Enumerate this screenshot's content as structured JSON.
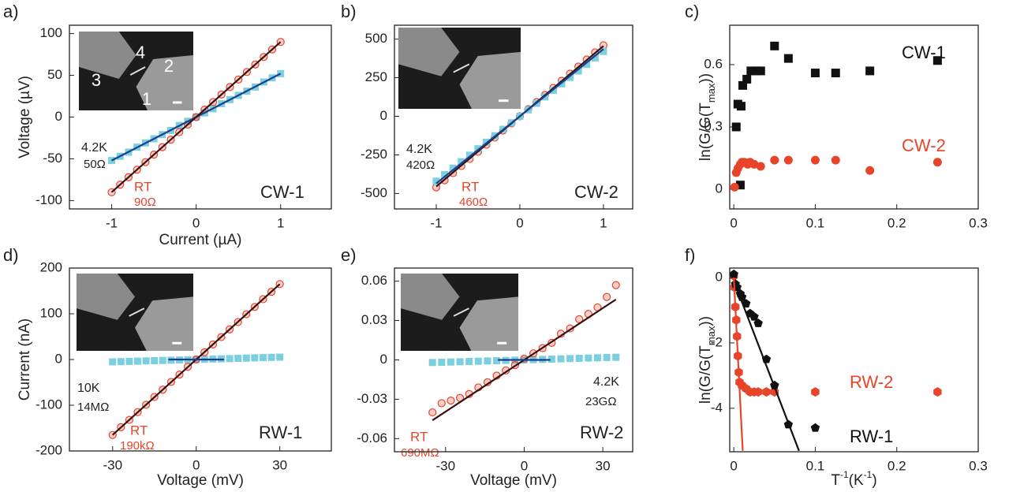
{
  "chart_data": [
    {
      "type": "scatter",
      "panel": "a)",
      "xlabel": "Current (µA)",
      "ylabel": "Voltage (µV)",
      "xlim": [
        -1.5,
        1.6
      ],
      "ylim": [
        -110,
        110
      ],
      "xticks": [
        -1,
        0,
        1
      ],
      "yticks": [
        -100,
        -50,
        0,
        50,
        100
      ],
      "inset": {
        "labels": [
          "4",
          "2",
          "3",
          "1"
        ]
      },
      "annotations": [
        {
          "text": "4.2K",
          "color": "#222222"
        },
        {
          "text": "50Ω",
          "color": "#222222"
        },
        {
          "text": "RT",
          "color": "#e8442a"
        },
        {
          "text": "90Ω",
          "color": "#e8442a"
        },
        {
          "text": "CW-1",
          "color": "#222222"
        }
      ],
      "series": [
        {
          "marker": "square",
          "color": "#7ccfdf",
          "x": [
            -1,
            -0.9,
            -0.8,
            -0.7,
            -0.6,
            -0.5,
            -0.4,
            -0.3,
            -0.2,
            -0.1,
            0,
            0.1,
            0.2,
            0.3,
            0.4,
            0.5,
            0.6,
            0.7,
            0.8,
            0.9,
            1
          ],
          "values": [
            -52,
            -47,
            -42,
            -36,
            -31,
            -26,
            -21,
            -16,
            -10,
            -5,
            0,
            5,
            10,
            16,
            21,
            26,
            31,
            36,
            42,
            47,
            52
          ]
        },
        {
          "marker": "open-circle",
          "color": "#e8442a",
          "x": [
            -1,
            -0.9,
            -0.8,
            -0.7,
            -0.6,
            -0.5,
            -0.4,
            -0.3,
            -0.2,
            -0.1,
            0,
            0.1,
            0.2,
            0.3,
            0.4,
            0.5,
            0.6,
            0.7,
            0.8,
            0.9,
            1
          ],
          "values": [
            -90,
            -81,
            -72,
            -63,
            -54,
            -45,
            -36,
            -27,
            -18,
            -9,
            0,
            9,
            18,
            27,
            36,
            45,
            54,
            63,
            72,
            81,
            90
          ]
        },
        {
          "marker": null,
          "color": "#1a3f8f",
          "x": [
            -1,
            1
          ],
          "values": [
            -52,
            52
          ]
        },
        {
          "marker": null,
          "color": "#3a1010",
          "x": [
            -1,
            1
          ],
          "values": [
            -90,
            90
          ]
        }
      ]
    },
    {
      "type": "scatter",
      "panel": "b)",
      "xlim": [
        -1.5,
        1.35
      ],
      "ylim": [
        -600,
        590
      ],
      "xticks": [
        -1,
        0,
        1
      ],
      "yticks": [
        -500,
        -250,
        0,
        250,
        500
      ],
      "inset": true,
      "annotations": [
        {
          "text": "4.2K",
          "color": "#222222"
        },
        {
          "text": "420Ω",
          "color": "#222222"
        },
        {
          "text": "RT",
          "color": "#e8442a"
        },
        {
          "text": "460Ω",
          "color": "#e8442a"
        },
        {
          "text": "CW-2",
          "color": "#222222"
        }
      ],
      "series": [
        {
          "marker": "open-circle",
          "color": "#e8442a",
          "x": [
            -1,
            -0.9,
            -0.8,
            -0.7,
            -0.6,
            -0.5,
            -0.4,
            -0.3,
            -0.2,
            -0.1,
            0,
            0.1,
            0.2,
            0.3,
            0.4,
            0.5,
            0.6,
            0.7,
            0.8,
            0.9,
            1
          ],
          "values": [
            -460,
            -414,
            -368,
            -322,
            -276,
            -230,
            -184,
            -138,
            -92,
            -46,
            0,
            46,
            92,
            138,
            184,
            230,
            276,
            322,
            368,
            414,
            460
          ]
        },
        {
          "marker": "square",
          "color": "#7ccfdf",
          "x": [
            -1,
            -0.9,
            -0.8,
            -0.7,
            -0.6,
            -0.5,
            -0.4,
            -0.3,
            -0.2,
            -0.1,
            0,
            0.1,
            0.2,
            0.3,
            0.4,
            0.5,
            0.6,
            0.7,
            0.8,
            0.9,
            1
          ],
          "values": [
            -420,
            -378,
            -336,
            -294,
            -252,
            -210,
            -168,
            -126,
            -84,
            -42,
            0,
            42,
            84,
            126,
            168,
            210,
            252,
            294,
            336,
            378,
            420
          ]
        },
        {
          "marker": null,
          "color": "#3a1010",
          "x": [
            -1,
            1
          ],
          "values": [
            -455,
            455
          ]
        },
        {
          "marker": null,
          "color": "#1a3f8f",
          "x": [
            -1,
            1
          ],
          "values": [
            -435,
            435
          ]
        }
      ]
    },
    {
      "type": "scatter",
      "panel": "c)",
      "ylabel": [
        {
          "text": "ln(G/G(T"
        },
        {
          "text": "max",
          "sub": true
        },
        {
          "text": "))"
        }
      ],
      "xlim": [
        -0.005,
        0.3
      ],
      "ylim": [
        -0.095,
        0.79
      ],
      "xticks": [
        0,
        0.1,
        0.2,
        0.3
      ],
      "yticks": [
        0,
        0.3,
        0.6
      ],
      "series": [
        {
          "name": "CW-1",
          "marker": "square",
          "color": "#111111",
          "x": [
            0.003,
            0.005,
            0.008,
            0.009,
            0.011,
            0.016,
            0.021,
            0.028,
            0.033,
            0.05,
            0.067,
            0.1,
            0.125,
            0.167,
            0.25
          ],
          "values": [
            0.3,
            0.41,
            0.02,
            0.4,
            0.5,
            0.53,
            0.57,
            0.57,
            0.57,
            0.69,
            0.63,
            0.56,
            0.56,
            0.57,
            0.62
          ]
        },
        {
          "name": "CW-2",
          "marker": "circle",
          "color": "#e8442a",
          "x": [
            0.001,
            0.003,
            0.005,
            0.008,
            0.01,
            0.013,
            0.017,
            0.02,
            0.025,
            0.033,
            0.05,
            0.067,
            0.1,
            0.125,
            0.167,
            0.25
          ],
          "values": [
            0.01,
            0.08,
            0.1,
            0.12,
            0.13,
            0.13,
            0.12,
            0.13,
            0.12,
            0.11,
            0.14,
            0.14,
            0.14,
            0.14,
            0.09,
            0.13
          ]
        }
      ]
    },
    {
      "type": "scatter",
      "panel": "d)",
      "xlabel": "Voltage (mV)",
      "ylabel": "Current (nA)",
      "xlim": [
        -45.5,
        48.5
      ],
      "ylim": [
        -200,
        200
      ],
      "xticks": [
        -30,
        0,
        30
      ],
      "yticks": [
        -200,
        -100,
        0,
        100,
        200
      ],
      "inset": true,
      "annotations": [
        {
          "text": "10K",
          "color": "#222222"
        },
        {
          "text": "14MΩ",
          "color": "#222222"
        },
        {
          "text": "RT",
          "color": "#e8442a"
        },
        {
          "text": "190kΩ",
          "color": "#e8442a"
        },
        {
          "text": "RW-1",
          "color": "#222222"
        }
      ],
      "series": [
        {
          "marker": "square",
          "color": "#7ccfdf",
          "x": [
            -30,
            -27,
            -24,
            -21,
            -18,
            -15,
            -12,
            -9,
            -6,
            -3,
            0,
            3,
            6,
            9,
            12,
            15,
            18,
            21,
            24,
            27,
            30
          ],
          "values": [
            -5.1,
            -4.6,
            -4.1,
            -3.6,
            -3.1,
            -2.6,
            -2,
            -1.5,
            -1,
            -0.5,
            0,
            0.5,
            1,
            1.5,
            2,
            2.6,
            3.1,
            3.6,
            4.1,
            4.6,
            5.1
          ]
        },
        {
          "marker": "open-circle",
          "color": "#e8442a",
          "x": [
            -30,
            -27,
            -24,
            -21,
            -18,
            -15,
            -12,
            -9,
            -6,
            -3,
            0,
            3,
            6,
            9,
            12,
            15,
            18,
            21,
            24,
            27,
            30
          ],
          "values": [
            -165,
            -148,
            -132,
            -115,
            -99,
            -82,
            -66,
            -49,
            -33,
            -16,
            0,
            16,
            33,
            49,
            66,
            82,
            99,
            115,
            132,
            148,
            165
          ]
        },
        {
          "marker": null,
          "color": "#3a1010",
          "x": [
            -30,
            30
          ],
          "values": [
            -165,
            165
          ]
        },
        {
          "marker": null,
          "color": "#1a3f8f",
          "x": [
            -10,
            10
          ],
          "values": [
            0,
            0
          ]
        }
      ]
    },
    {
      "type": "scatter",
      "panel": "e)",
      "xlabel": "Voltage (mV)",
      "xlim": [
        -49.5,
        41.4
      ],
      "ylim": [
        -0.07,
        0.07
      ],
      "xticks": [
        -30,
        0,
        30
      ],
      "yticks": [
        -0.06,
        -0.03,
        0,
        0.03,
        0.06
      ],
      "inset": true,
      "annotations": [
        {
          "text": "4.2K",
          "color": "#222222"
        },
        {
          "text": "23GΩ",
          "color": "#222222"
        },
        {
          "text": "RT",
          "color": "#e8442a"
        },
        {
          "text": "690MΩ",
          "color": "#e8442a"
        },
        {
          "text": "RW-2",
          "color": "#222222"
        }
      ],
      "series": [
        {
          "marker": "square",
          "color": "#7ccfdf",
          "x": [
            -35,
            -31.5,
            -28,
            -24.5,
            -21,
            -17.5,
            -14,
            -10.5,
            -7,
            -3.5,
            0,
            3.5,
            7,
            10.5,
            14,
            17.5,
            21,
            24.5,
            28,
            31.5,
            35
          ],
          "values": [
            -0.002,
            -0.0018,
            -0.0016,
            -0.0014,
            -0.0012,
            -0.001,
            -0.0008,
            -0.0006,
            -0.0004,
            -0.0002,
            0,
            0.0002,
            0.0004,
            0.0006,
            0.0008,
            0.001,
            0.0012,
            0.0014,
            0.0016,
            0.0018,
            0.002
          ]
        },
        {
          "marker": "open-circle",
          "color": "#e8442a",
          "x": [
            -35,
            -31.5,
            -28,
            -24.5,
            -21,
            -17.5,
            -14,
            -10.5,
            -7,
            -3.5,
            0,
            3.5,
            7,
            10.5,
            14,
            17.5,
            21,
            24.5,
            28,
            31.5,
            35
          ],
          "values": [
            -0.04,
            -0.033,
            -0.031,
            -0.029,
            -0.026,
            -0.021,
            -0.017,
            -0.012,
            -0.008,
            -0.004,
            0.001,
            0.005,
            0.009,
            0.013,
            0.02,
            0.024,
            0.031,
            0.035,
            0.04,
            0.048,
            0.057
          ]
        },
        {
          "marker": null,
          "color": "#3a1010",
          "x": [
            -35,
            35
          ],
          "values": [
            -0.046,
            0.046
          ]
        },
        {
          "marker": null,
          "color": "#1a3f8f",
          "x": [
            -10,
            10
          ],
          "values": [
            0,
            0
          ]
        }
      ]
    },
    {
      "type": "scatter",
      "panel": "f)",
      "xlabel": [
        {
          "text": "T"
        },
        {
          "text": "-1",
          "sup": true
        },
        {
          "text": "(K"
        },
        {
          "text": "-1",
          "sup": true
        },
        {
          "text": ")"
        }
      ],
      "ylabel": [
        {
          "text": "ln(G/G(T"
        },
        {
          "text": "max",
          "sub": true
        },
        {
          "text": "))"
        }
      ],
      "xlim": [
        -0.005,
        0.3
      ],
      "ylim": [
        -5.33,
        0.29
      ],
      "xticks": [
        0,
        0.1,
        0.2,
        0.3
      ],
      "yticks": [
        -4,
        -2,
        0
      ],
      "series": [
        {
          "name": "RW-2",
          "marker": "hexagon",
          "color": "#e8442a",
          "x": [
            0,
            0.001,
            0.002,
            0.003,
            0.004,
            0.005,
            0.006,
            0.007,
            0.01,
            0.015,
            0.02,
            0.025,
            0.03,
            0.04,
            0.05,
            0.1,
            0.25
          ],
          "values": [
            0.05,
            -0.3,
            -0.9,
            -1.3,
            -1.8,
            -2.4,
            -2.9,
            -3.2,
            -3.3,
            -3.4,
            -3.5,
            -3.5,
            -3.5,
            -3.5,
            -3.5,
            -3.5,
            -3.5
          ]
        },
        {
          "name": "RW-1",
          "marker": "pentagon",
          "color": "#111111",
          "x": [
            0,
            0.002,
            0.004,
            0.008,
            0.01,
            0.015,
            0.02,
            0.025,
            0.03,
            0.04,
            0.05,
            0.067,
            0.1
          ],
          "values": [
            0.1,
            -0.2,
            -0.3,
            -0.5,
            -0.6,
            -0.8,
            -1.1,
            -1.2,
            -1.4,
            -2.5,
            -3.3,
            -4.5,
            -4.6
          ]
        },
        {
          "marker": null,
          "color": "#111111",
          "x": [
            0,
            0.08
          ],
          "values": [
            -0.1,
            -5.3
          ]
        },
        {
          "marker": null,
          "color": "#e8442a",
          "x": [
            0,
            0.011
          ],
          "values": [
            0,
            -5.3
          ]
        }
      ]
    }
  ]
}
